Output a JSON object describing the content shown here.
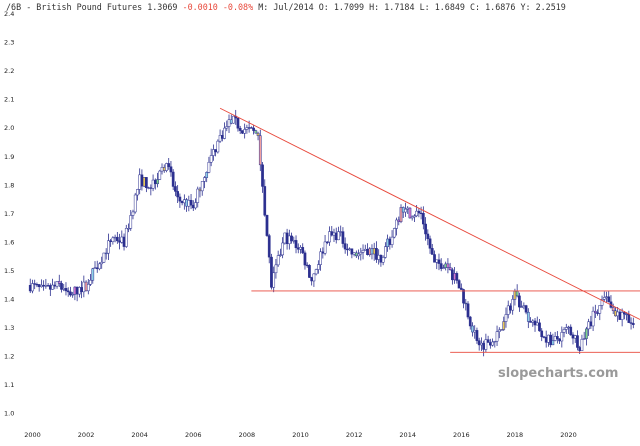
{
  "header": {
    "symbol": "/6B",
    "name": "British Pound Futures",
    "last": "1.3069",
    "change": "-0.0010",
    "change_pct": "-0.08%",
    "date_label": "M: Jul/2014",
    "open": "O: 1.7099",
    "high": "H: 1.7184",
    "low": "L: 1.6849",
    "close": "C: 1.6876",
    "y_label": "Y: 2.2519"
  },
  "watermark": "slopecharts.com",
  "colors": {
    "candle": "#2b2f8f",
    "trendline": "#e8493c",
    "change": "#e8493c",
    "header_text": "#333333"
  },
  "chart_data": {
    "type": "candlestick",
    "title": "/6B - British Pound Futures",
    "x_axis": {
      "type": "date",
      "range": [
        "1999-11",
        "2022-09"
      ],
      "ticks": [
        "2000",
        "2002",
        "2004",
        "2006",
        "2008",
        "2010",
        "2012",
        "2014",
        "2016",
        "2018",
        "2020"
      ]
    },
    "y_axis": {
      "range": [
        0.95,
        2.4
      ],
      "ticks": [
        "1.0",
        "1.1",
        "1.2",
        "1.3",
        "1.4",
        "1.5",
        "1.6",
        "1.7",
        "1.8",
        "1.9",
        "2.0",
        "2.1",
        "2.2",
        "2.3",
        "2.4"
      ]
    },
    "grid": false,
    "series": [
      {
        "x": [
          "1999-12",
          "2000-06",
          "2001-01",
          "2001-06",
          "2002-01",
          "2002-06",
          "2003-01",
          "2003-06",
          "2004-01",
          "2004-06",
          "2005-01",
          "2005-06",
          "2006-01",
          "2006-06",
          "2007-01",
          "2007-06",
          "2007-11",
          "2008-06",
          "2008-12",
          "2009-06",
          "2010-01",
          "2010-06",
          "2011-01",
          "2011-06",
          "2012-01",
          "2012-06",
          "2013-01",
          "2013-06",
          "2013-10",
          "2014-07",
          "2015-01",
          "2015-06",
          "2016-01",
          "2016-06",
          "2016-10",
          "2017-06",
          "2018-01",
          "2018-06",
          "2019-01",
          "2019-06",
          "2020-01",
          "2020-06",
          "2021-01",
          "2021-05",
          "2021-10",
          "2022-06"
        ],
        "values": [
          1.45,
          1.43,
          1.45,
          1.42,
          1.45,
          1.52,
          1.62,
          1.6,
          1.82,
          1.8,
          1.88,
          1.75,
          1.73,
          1.84,
          1.97,
          2.03,
          2.0,
          1.98,
          1.45,
          1.62,
          1.58,
          1.47,
          1.62,
          1.63,
          1.55,
          1.58,
          1.55,
          1.62,
          1.71,
          1.7,
          1.52,
          1.53,
          1.43,
          1.3,
          1.24,
          1.28,
          1.42,
          1.35,
          1.28,
          1.25,
          1.3,
          1.24,
          1.36,
          1.4,
          1.36,
          1.31
        ]
      }
    ],
    "annotations": [
      {
        "type": "trendline",
        "from": {
          "x": "2007-01",
          "y": 2.07
        },
        "to": {
          "x": "2022-09",
          "y": 1.33
        }
      },
      {
        "type": "horizontal",
        "y": 1.43,
        "from": "2008-03",
        "to": "2022-09"
      },
      {
        "type": "horizontal",
        "y": 1.215,
        "from": "2015-08",
        "to": "2022-09"
      }
    ]
  }
}
